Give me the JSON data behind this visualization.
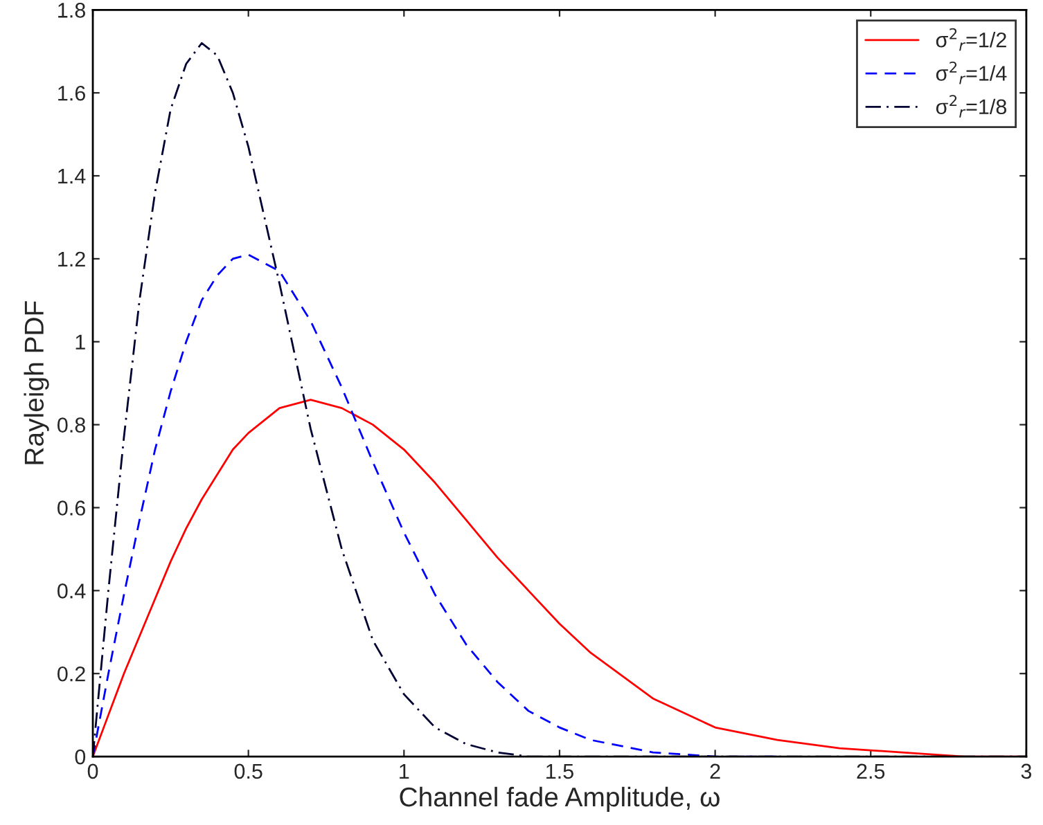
{
  "chart_data": {
    "type": "line",
    "xlabel": "Channel fade Amplitude, ω",
    "ylabel": "Rayleigh PDF",
    "x": [
      0,
      0.05,
      0.1,
      0.15,
      0.2,
      0.25,
      0.3,
      0.35,
      0.4,
      0.45,
      0.5,
      0.6,
      0.7,
      0.8,
      0.9,
      1,
      1.1,
      1.2,
      1.3,
      1.4,
      1.5,
      1.6,
      1.8,
      2,
      2.2,
      2.4,
      2.6,
      2.8,
      3
    ],
    "series": [
      {
        "name": "σ$^{2}$$_{r}$=1/2",
        "color": "#ff0000",
        "line_style": "solid",
        "values": [
          0,
          0.1,
          0.2,
          0.29,
          0.38,
          0.47,
          0.55,
          0.62,
          0.68,
          0.74,
          0.78,
          0.84,
          0.86,
          0.84,
          0.8,
          0.74,
          0.66,
          0.57,
          0.48,
          0.4,
          0.32,
          0.25,
          0.14,
          0.07,
          0.04,
          0.02,
          0.01,
          0,
          0
        ]
      },
      {
        "name": "σ$^{2}$$_{r}$=1/4",
        "color": "#0000ff",
        "line_style": "dashed",
        "values": [
          0,
          0.2,
          0.39,
          0.57,
          0.74,
          0.88,
          1,
          1.1,
          1.16,
          1.2,
          1.21,
          1.17,
          1.05,
          0.89,
          0.71,
          0.54,
          0.39,
          0.27,
          0.18,
          0.11,
          0.07,
          0.04,
          0.01,
          0,
          0,
          null,
          null,
          null,
          null
        ]
      },
      {
        "name": "σ$^{2}$$_{r}$=1/8",
        "color": "#000033",
        "line_style": "dashdot",
        "values": [
          0,
          0.4,
          0.77,
          1.1,
          1.36,
          1.56,
          1.67,
          1.72,
          1.69,
          1.6,
          1.47,
          1.14,
          0.79,
          0.5,
          0.28,
          0.15,
          0.07,
          0.03,
          0.01,
          0,
          0,
          0,
          0,
          0,
          0,
          0,
          0,
          0,
          0
        ]
      }
    ],
    "xlim": [
      0,
      3
    ],
    "xticks": [
      0,
      0.5,
      1,
      1.5,
      2,
      2.5,
      3
    ],
    "ylim": [
      0,
      1.8
    ],
    "yticks": [
      0,
      0.2,
      0.4,
      0.6,
      0.8,
      1,
      1.2,
      1.4,
      1.6,
      1.8
    ],
    "grid": false,
    "legend": "top right",
    "marker": "none"
  }
}
